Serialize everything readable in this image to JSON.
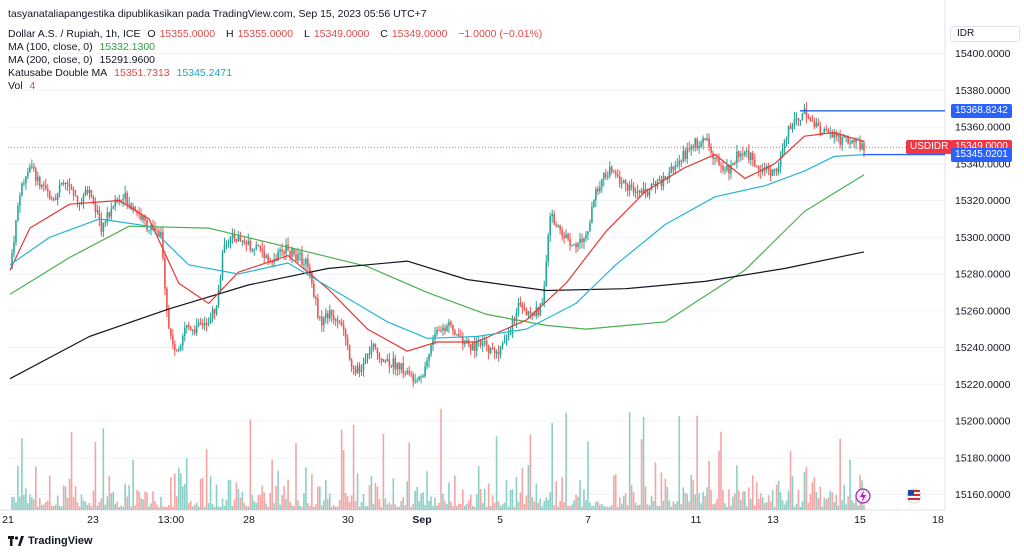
{
  "header": {
    "publish_line": "tasyanataliapangestika dipublikasikan pada TradingView.com, Sep 15, 2023 05:56 UTC+7",
    "symbol_line": {
      "name": "Dollar A.S. / Rupiah, 1h, ICE",
      "o_label": "O",
      "o_value": "15355.0000",
      "h_label": "H",
      "h_value": "15355.0000",
      "l_label": "L",
      "l_value": "15349.0000",
      "c_label": "C",
      "c_value": "15349.0000",
      "change": "−1.0000 (−0.01%)"
    },
    "indicators": [
      {
        "label": "MA (100, close, 0)",
        "values": [
          "15332.1300"
        ],
        "colors": [
          "#2e9b46"
        ]
      },
      {
        "label": "MA (200, close, 0)",
        "values": [
          "15291.9600"
        ],
        "colors": [
          "#131722"
        ]
      },
      {
        "label": "Katusabe Double MA",
        "values": [
          "15351.7313",
          "15345.2471"
        ],
        "colors": [
          "#e04a4a",
          "#16a5c9"
        ]
      },
      {
        "label": "Vol",
        "values": [
          "4"
        ],
        "colors": [
          "#e04a4a"
        ]
      }
    ]
  },
  "currency_box": "IDR",
  "price_badges": [
    {
      "label": "",
      "value": "15368.8242",
      "color": "#2962ff"
    },
    {
      "label": "USDIDR",
      "value": "15349.0000",
      "color": "#f23645"
    },
    {
      "label": "",
      "value": "15345.0201",
      "color": "#2962ff"
    }
  ],
  "footer": {
    "brand": "TradingView"
  },
  "colors": {
    "up": "#26a69a",
    "down": "#ef5350",
    "vol_up": "#8ccfc7",
    "vol_down": "#f5a5a3",
    "ma100": "#4caf50",
    "ma200": "#131722",
    "katusabe_fast": "#e53935",
    "katusabe_slow": "#26b5d3",
    "hline": "#2962ff"
  },
  "chart_data": {
    "type": "candlestick",
    "x_tick_labels": [
      "21",
      "23",
      "13:00",
      "28",
      "30",
      "Sep",
      "5",
      "7",
      "11",
      "13",
      "15",
      "18"
    ],
    "y_tick_labels": [
      "15400.0000",
      "15380.0000",
      "15360.0000",
      "15340.0000",
      "15320.0000",
      "15300.0000",
      "15280.0000",
      "15260.0000",
      "15240.0000",
      "15220.0000",
      "15200.0000",
      "15180.0000",
      "15160.0000"
    ],
    "ylim": [
      15152,
      15406
    ],
    "horizontal_lines": [
      15368.8242,
      15345.0201
    ],
    "last_price": 15349,
    "price_path": [
      {
        "t": 0,
        "p": 15283
      },
      {
        "t": 5,
        "p": 15325
      },
      {
        "t": 10,
        "p": 15340
      },
      {
        "t": 16,
        "p": 15326
      },
      {
        "t": 22,
        "p": 15322
      },
      {
        "t": 28,
        "p": 15330
      },
      {
        "t": 34,
        "p": 15318
      },
      {
        "t": 40,
        "p": 15326
      },
      {
        "t": 46,
        "p": 15305
      },
      {
        "t": 52,
        "p": 15318
      },
      {
        "t": 58,
        "p": 15322
      },
      {
        "t": 64,
        "p": 15314
      },
      {
        "t": 70,
        "p": 15305
      },
      {
        "t": 76,
        "p": 15300
      },
      {
        "t": 80,
        "p": 15250
      },
      {
        "t": 84,
        "p": 15236
      },
      {
        "t": 88,
        "p": 15252
      },
      {
        "t": 94,
        "p": 15250
      },
      {
        "t": 100,
        "p": 15256
      },
      {
        "t": 104,
        "p": 15262
      },
      {
        "t": 108,
        "p": 15298
      },
      {
        "t": 114,
        "p": 15300
      },
      {
        "t": 120,
        "p": 15296
      },
      {
        "t": 126,
        "p": 15294
      },
      {
        "t": 132,
        "p": 15286
      },
      {
        "t": 138,
        "p": 15294
      },
      {
        "t": 144,
        "p": 15290
      },
      {
        "t": 150,
        "p": 15286
      },
      {
        "t": 156,
        "p": 15254
      },
      {
        "t": 160,
        "p": 15258
      },
      {
        "t": 166,
        "p": 15256
      },
      {
        "t": 172,
        "p": 15232
      },
      {
        "t": 176,
        "p": 15226
      },
      {
        "t": 182,
        "p": 15240
      },
      {
        "t": 188,
        "p": 15234
      },
      {
        "t": 196,
        "p": 15230
      },
      {
        "t": 202,
        "p": 15224
      },
      {
        "t": 208,
        "p": 15226
      },
      {
        "t": 214,
        "p": 15248
      },
      {
        "t": 220,
        "p": 15252
      },
      {
        "t": 226,
        "p": 15246
      },
      {
        "t": 232,
        "p": 15240
      },
      {
        "t": 238,
        "p": 15242
      },
      {
        "t": 244,
        "p": 15236
      },
      {
        "t": 250,
        "p": 15244
      },
      {
        "t": 256,
        "p": 15262
      },
      {
        "t": 262,
        "p": 15256
      },
      {
        "t": 268,
        "p": 15262
      },
      {
        "t": 272,
        "p": 15312
      },
      {
        "t": 278,
        "p": 15302
      },
      {
        "t": 284,
        "p": 15295
      },
      {
        "t": 290,
        "p": 15300
      },
      {
        "t": 296,
        "p": 15328
      },
      {
        "t": 302,
        "p": 15336
      },
      {
        "t": 308,
        "p": 15330
      },
      {
        "t": 314,
        "p": 15326
      },
      {
        "t": 320,
        "p": 15324
      },
      {
        "t": 326,
        "p": 15328
      },
      {
        "t": 332,
        "p": 15334
      },
      {
        "t": 338,
        "p": 15343
      },
      {
        "t": 344,
        "p": 15350
      },
      {
        "t": 350,
        "p": 15354
      },
      {
        "t": 356,
        "p": 15340
      },
      {
        "t": 362,
        "p": 15336
      },
      {
        "t": 368,
        "p": 15348
      },
      {
        "t": 374,
        "p": 15342
      },
      {
        "t": 380,
        "p": 15336
      },
      {
        "t": 386,
        "p": 15336
      },
      {
        "t": 392,
        "p": 15358
      },
      {
        "t": 396,
        "p": 15365
      },
      {
        "t": 400,
        "p": 15368
      },
      {
        "t": 406,
        "p": 15360
      },
      {
        "t": 412,
        "p": 15356
      },
      {
        "t": 418,
        "p": 15353
      },
      {
        "t": 424,
        "p": 15354
      },
      {
        "t": 430,
        "p": 15349
      }
    ],
    "moving_averages": [
      {
        "name": "MA (100, close, 0)",
        "points": [
          [
            0,
            15269
          ],
          [
            30,
            15289
          ],
          [
            60,
            15306
          ],
          [
            100,
            15305
          ],
          [
            150,
            15292
          ],
          [
            180,
            15284
          ],
          [
            210,
            15270
          ],
          [
            240,
            15258
          ],
          [
            270,
            15252
          ],
          [
            290,
            15250
          ],
          [
            330,
            15254
          ],
          [
            370,
            15282
          ],
          [
            400,
            15314
          ],
          [
            430,
            15334
          ]
        ]
      },
      {
        "name": "MA (200, close, 0)",
        "points": [
          [
            0,
            15223
          ],
          [
            40,
            15246
          ],
          [
            80,
            15261
          ],
          [
            120,
            15274
          ],
          [
            160,
            15283
          ],
          [
            200,
            15287
          ],
          [
            230,
            15277
          ],
          [
            270,
            15271
          ],
          [
            310,
            15272
          ],
          [
            350,
            15276
          ],
          [
            390,
            15283
          ],
          [
            430,
            15292
          ]
        ]
      },
      {
        "name": "Katusabe Double MA",
        "points": [
          [
            0,
            15282
          ],
          [
            10,
            15305
          ],
          [
            30,
            15318
          ],
          [
            55,
            15320
          ],
          [
            70,
            15310
          ],
          [
            85,
            15275
          ],
          [
            100,
            15264
          ],
          [
            115,
            15281
          ],
          [
            140,
            15290
          ],
          [
            160,
            15272
          ],
          [
            180,
            15250
          ],
          [
            200,
            15238
          ],
          [
            215,
            15243
          ],
          [
            235,
            15243
          ],
          [
            260,
            15255
          ],
          [
            280,
            15275
          ],
          [
            300,
            15303
          ],
          [
            320,
            15325
          ],
          [
            340,
            15338
          ],
          [
            355,
            15345
          ],
          [
            370,
            15332
          ],
          [
            385,
            15340
          ],
          [
            400,
            15355
          ],
          [
            415,
            15357
          ],
          [
            430,
            15352
          ]
        ]
      },
      {
        "name": "Katusabe Double MA (slow)",
        "points": [
          [
            0,
            15285
          ],
          [
            20,
            15300
          ],
          [
            45,
            15310
          ],
          [
            70,
            15306
          ],
          [
            90,
            15285
          ],
          [
            115,
            15280
          ],
          [
            140,
            15286
          ],
          [
            165,
            15270
          ],
          [
            190,
            15254
          ],
          [
            210,
            15245
          ],
          [
            235,
            15246
          ],
          [
            260,
            15250
          ],
          [
            285,
            15264
          ],
          [
            305,
            15285
          ],
          [
            330,
            15307
          ],
          [
            355,
            15322
          ],
          [
            380,
            15328
          ],
          [
            400,
            15336
          ],
          [
            415,
            15344
          ],
          [
            430,
            15345
          ]
        ]
      }
    ]
  }
}
